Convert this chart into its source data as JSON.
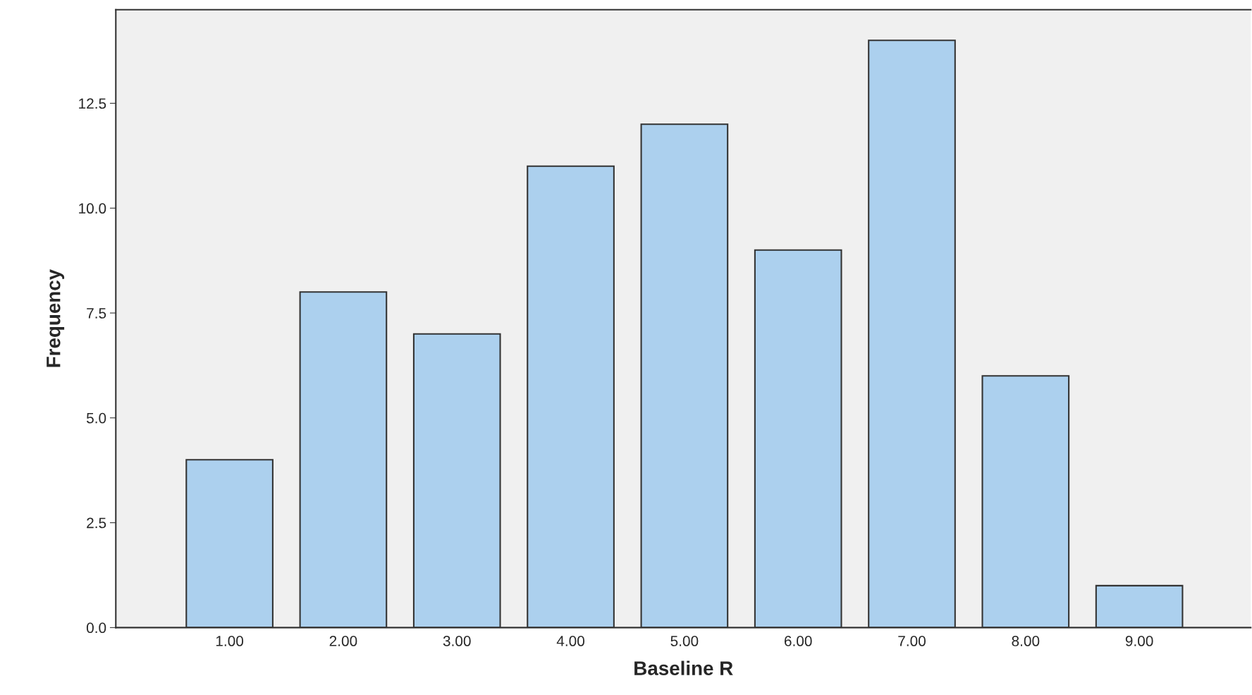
{
  "chart_data": {
    "type": "bar",
    "xlabel": "Baseline R",
    "ylabel": "Frequency",
    "categories": [
      "1.00",
      "2.00",
      "3.00",
      "4.00",
      "5.00",
      "6.00",
      "7.00",
      "8.00",
      "9.00"
    ],
    "values": [
      4,
      8,
      7,
      11,
      12,
      9,
      14,
      6,
      1
    ],
    "color": "#acd0ee",
    "ylim": [
      0,
      14.73
    ],
    "yticks": [
      {
        "value": 0,
        "label": "0.0"
      },
      {
        "value": 2.5,
        "label": "2.5"
      },
      {
        "value": 5,
        "label": "5.0"
      },
      {
        "value": 7.5,
        "label": "7.5"
      },
      {
        "value": 10,
        "label": "10.0"
      },
      {
        "value": 12.5,
        "label": "12.5"
      }
    ],
    "grid": false,
    "legend": false
  }
}
